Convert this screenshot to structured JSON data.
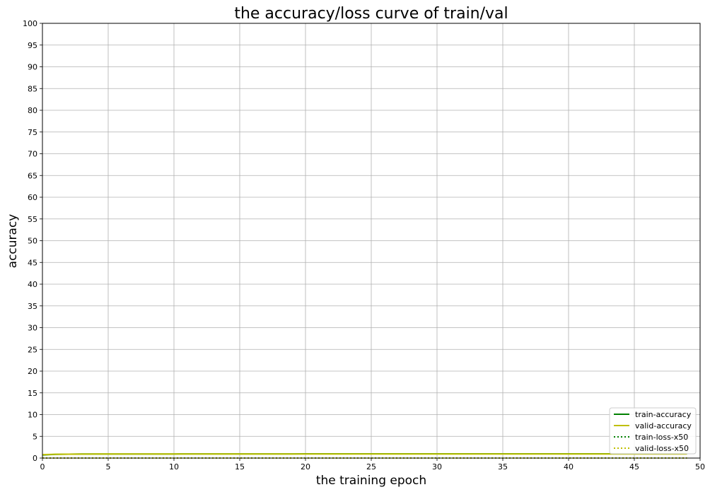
{
  "chart_data": {
    "type": "line",
    "title": "the accuracy/loss curve of train/val",
    "xlabel": "the training epoch",
    "ylabel": "accuracy",
    "xlim": [
      0,
      50
    ],
    "ylim": [
      0,
      100
    ],
    "xticks": [
      0,
      5,
      10,
      15,
      20,
      25,
      30,
      35,
      40,
      45,
      50
    ],
    "yticks": [
      0,
      5,
      10,
      15,
      20,
      25,
      30,
      35,
      40,
      45,
      50,
      55,
      60,
      65,
      70,
      75,
      80,
      85,
      90,
      95,
      100
    ],
    "grid": true,
    "legend_position": "lower-right",
    "x": [
      0,
      1,
      2,
      3,
      4,
      5,
      6,
      7,
      8,
      9,
      10,
      11,
      12,
      13,
      14,
      15,
      16,
      17,
      18,
      19,
      20,
      21,
      22,
      23,
      24,
      25,
      26,
      27,
      28,
      29,
      30,
      31,
      32,
      33,
      34,
      35,
      36,
      37,
      38,
      39,
      40,
      41,
      42,
      43,
      44,
      45,
      46,
      47,
      48,
      49
    ],
    "series": [
      {
        "name": "train-accuracy",
        "color": "#008000",
        "style": "solid",
        "values": [
          0.72,
          0.85,
          0.9,
          0.92,
          0.93,
          0.94,
          0.94,
          0.95,
          0.95,
          0.95,
          0.95,
          0.96,
          0.96,
          0.96,
          0.96,
          0.96,
          0.96,
          0.96,
          0.96,
          0.96,
          0.97,
          0.97,
          0.97,
          0.97,
          0.97,
          0.97,
          0.97,
          0.97,
          0.97,
          0.97,
          0.97,
          0.97,
          0.97,
          0.97,
          0.97,
          0.97,
          0.97,
          0.97,
          0.97,
          0.97,
          0.97,
          0.97,
          0.97,
          0.97,
          0.97,
          0.97,
          0.97,
          0.97,
          0.97,
          0.97
        ]
      },
      {
        "name": "valid-accuracy",
        "color": "#bfbf00",
        "style": "solid",
        "values": [
          0.8,
          0.88,
          0.9,
          0.91,
          0.92,
          0.92,
          0.92,
          0.92,
          0.93,
          0.93,
          0.93,
          0.93,
          0.93,
          0.93,
          0.93,
          0.93,
          0.93,
          0.93,
          0.93,
          0.93,
          0.93,
          0.93,
          0.93,
          0.93,
          0.93,
          0.93,
          0.93,
          0.93,
          0.93,
          0.93,
          0.93,
          0.93,
          0.93,
          0.93,
          0.93,
          0.93,
          0.93,
          0.93,
          0.93,
          0.93,
          0.93,
          0.93,
          0.93,
          0.93,
          0.93,
          0.93,
          0.93,
          0.93,
          0.93,
          0.93
        ]
      },
      {
        "name": "train-loss-x50",
        "color": "#008000",
        "style": "dotted",
        "values": [
          0.03,
          0.02,
          0.02,
          0.02,
          0.02,
          0.02,
          0.02,
          0.02,
          0.02,
          0.02,
          0.02,
          0.02,
          0.02,
          0.02,
          0.02,
          0.02,
          0.02,
          0.02,
          0.02,
          0.02,
          0.02,
          0.02,
          0.02,
          0.02,
          0.02,
          0.02,
          0.02,
          0.02,
          0.02,
          0.02,
          0.02,
          0.02,
          0.02,
          0.02,
          0.02,
          0.02,
          0.02,
          0.02,
          0.02,
          0.02,
          0.02,
          0.02,
          0.02,
          0.02,
          0.02,
          0.02,
          0.02,
          0.02,
          0.02,
          0.02
        ]
      },
      {
        "name": "valid-loss-x50",
        "color": "#bfbf00",
        "style": "dotted",
        "values": [
          0.03,
          0.02,
          0.02,
          0.02,
          0.02,
          0.02,
          0.02,
          0.02,
          0.02,
          0.02,
          0.02,
          0.02,
          0.02,
          0.02,
          0.02,
          0.02,
          0.02,
          0.02,
          0.02,
          0.02,
          0.02,
          0.02,
          0.02,
          0.02,
          0.02,
          0.02,
          0.02,
          0.02,
          0.02,
          0.02,
          0.02,
          0.02,
          0.02,
          0.02,
          0.02,
          0.02,
          0.02,
          0.02,
          0.02,
          0.02,
          0.02,
          0.02,
          0.02,
          0.02,
          0.02,
          0.02,
          0.02,
          0.02,
          0.02,
          0.02
        ]
      }
    ]
  }
}
